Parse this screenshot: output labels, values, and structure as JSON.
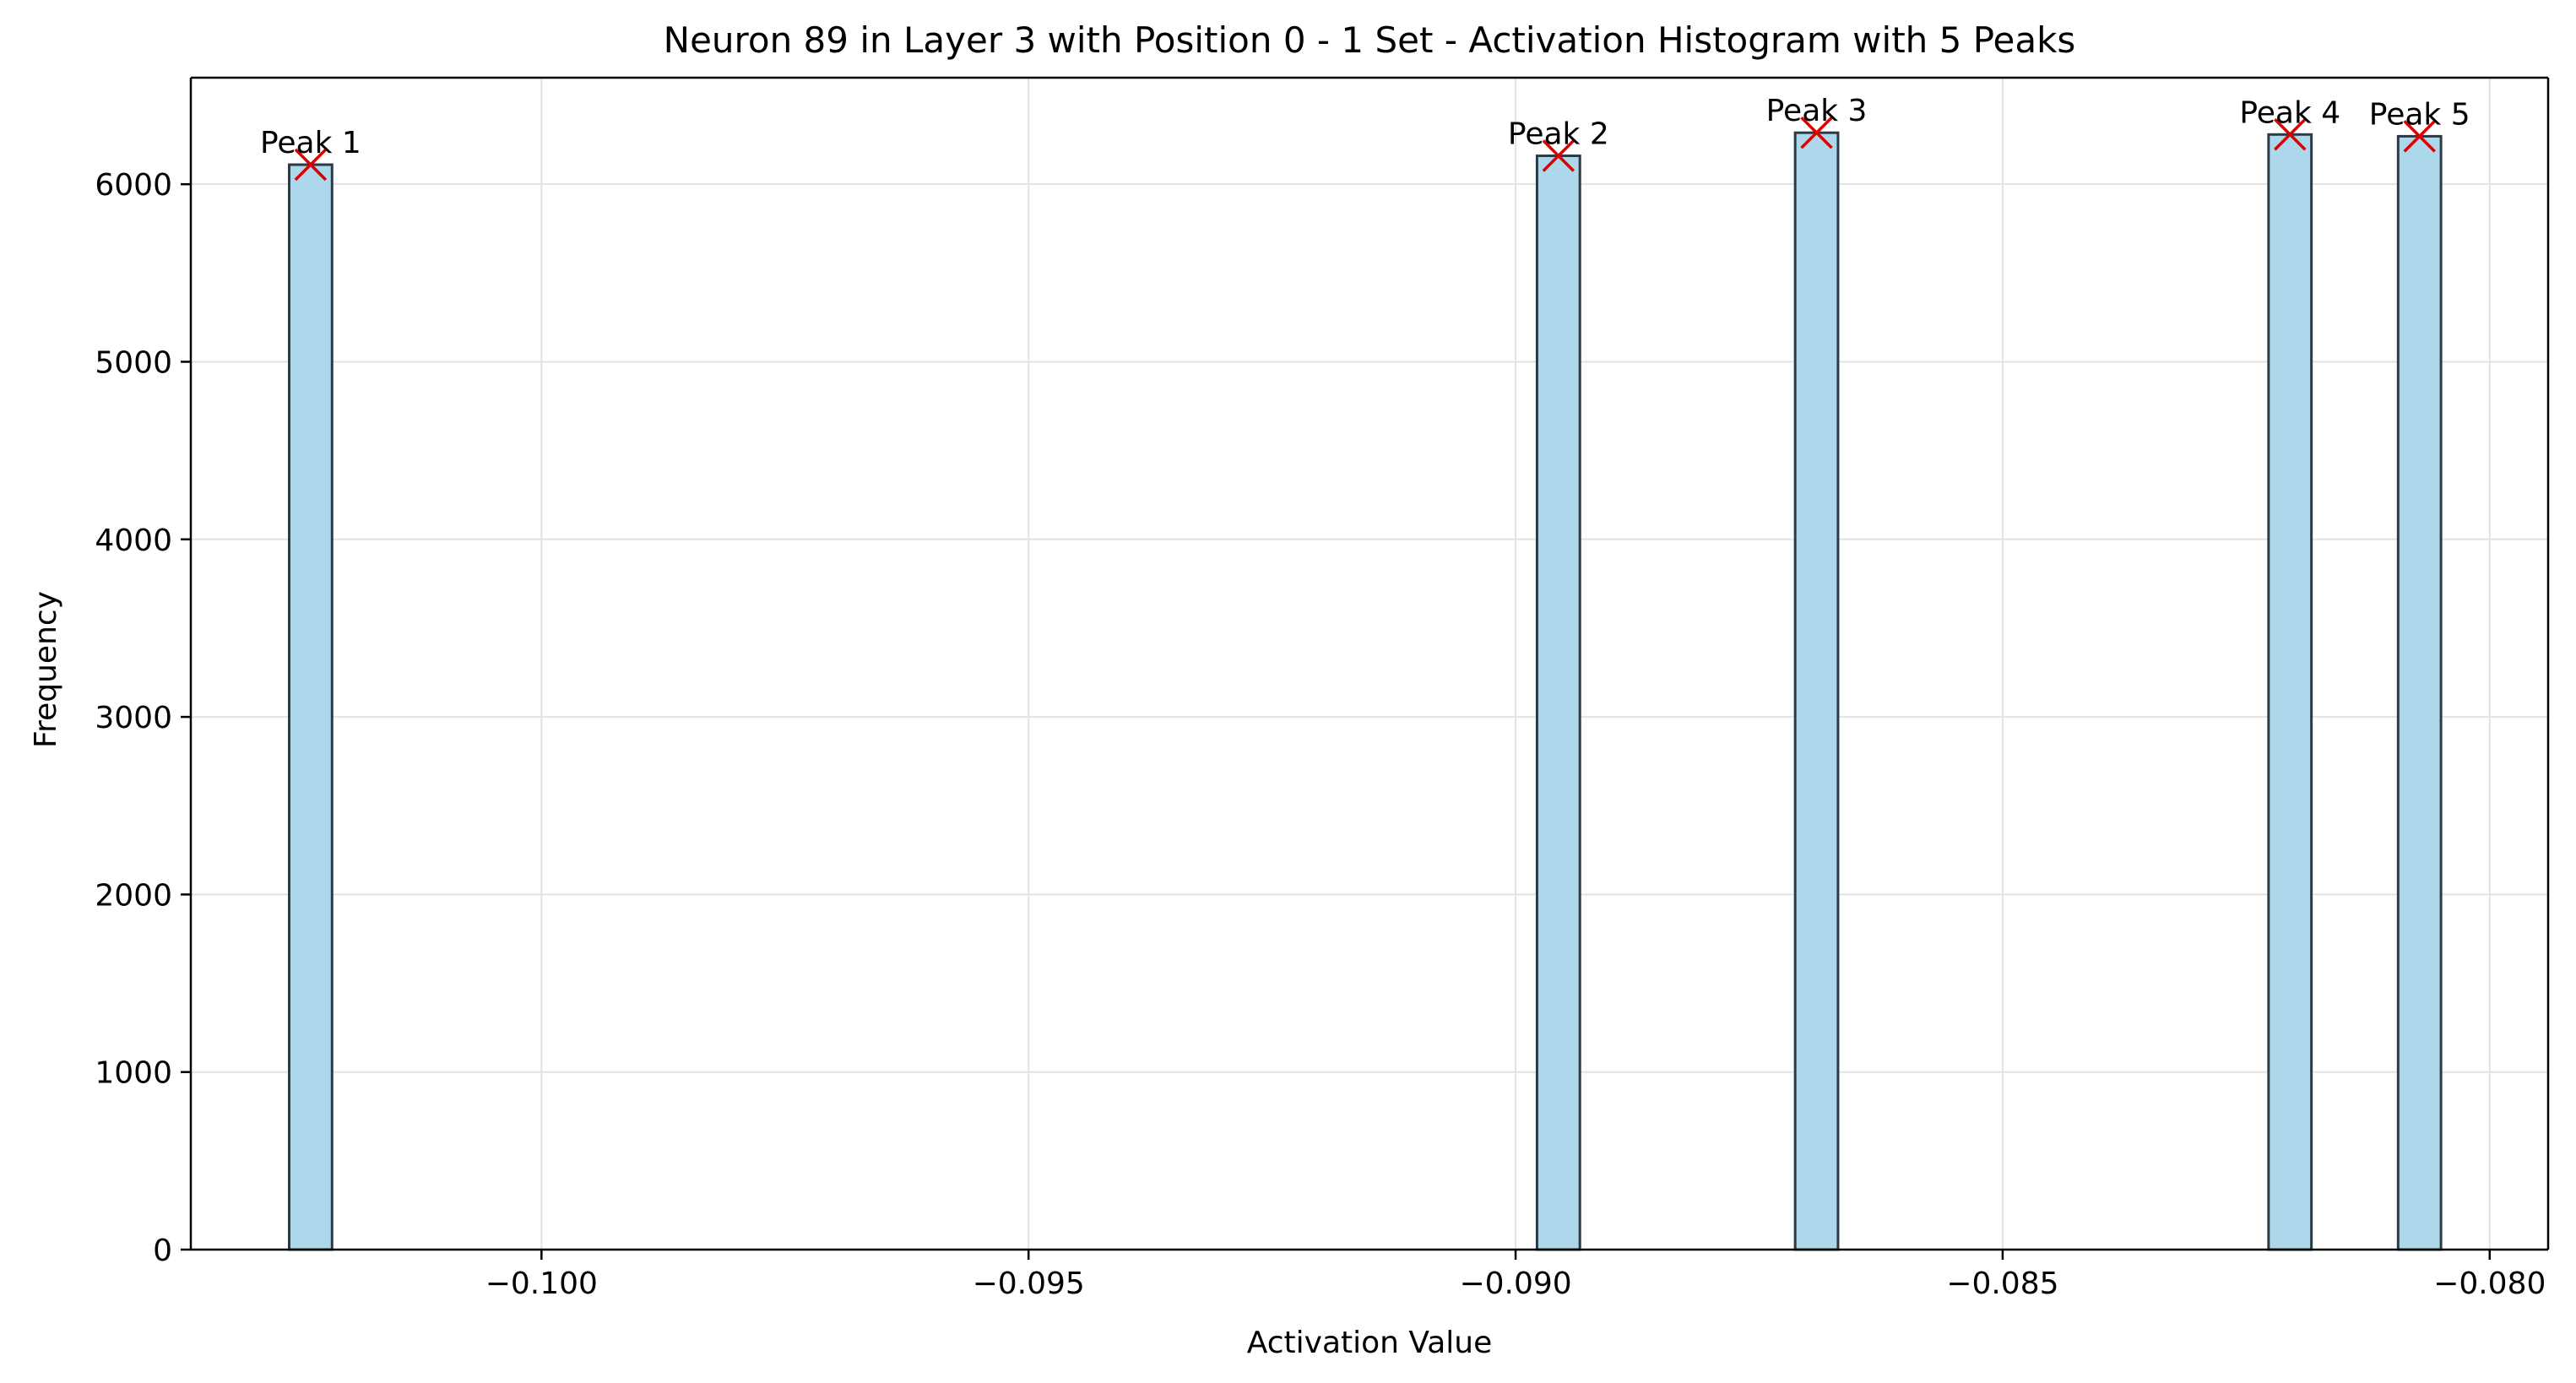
{
  "chart_data": {
    "type": "bar",
    "title": "Neuron 89 in Layer 3 with Position 0 - 1 Set - Activation Histogram with 5 Peaks",
    "xlabel": "Activation Value",
    "ylabel": "Frequency",
    "xlim": [
      -0.1036,
      -0.0794
    ],
    "ylim": [
      0,
      6600
    ],
    "grid": true,
    "bin_width": 0.00044,
    "x_ticks": [
      -0.1,
      -0.095,
      -0.09,
      -0.085,
      -0.08
    ],
    "x_tick_labels": [
      "−0.100",
      "−0.095",
      "−0.090",
      "−0.085",
      "−0.080"
    ],
    "y_ticks": [
      0,
      1000,
      2000,
      3000,
      4000,
      5000,
      6000
    ],
    "y_tick_labels": [
      "0",
      "1000",
      "2000",
      "3000",
      "4000",
      "5000",
      "6000"
    ],
    "bars": [
      {
        "x": -0.10237,
        "value": 6110
      },
      {
        "x": -0.08956,
        "value": 6160
      },
      {
        "x": -0.08691,
        "value": 6290
      },
      {
        "x": -0.08205,
        "value": 6280
      },
      {
        "x": -0.08072,
        "value": 6270
      }
    ],
    "peaks": [
      {
        "label": "Peak 1",
        "x": -0.10237,
        "y": 6110
      },
      {
        "label": "Peak 2",
        "x": -0.08956,
        "y": 6160
      },
      {
        "label": "Peak 3",
        "x": -0.08691,
        "y": 6290
      },
      {
        "label": "Peak 4",
        "x": -0.08205,
        "y": 6280
      },
      {
        "label": "Peak 5",
        "x": -0.08072,
        "y": 6270
      }
    ],
    "colors": {
      "bar_fill": "#add8ec",
      "bar_edge": "#2b3a45",
      "peak_marker": "#dd0000",
      "grid": "#e3e3e3"
    }
  }
}
